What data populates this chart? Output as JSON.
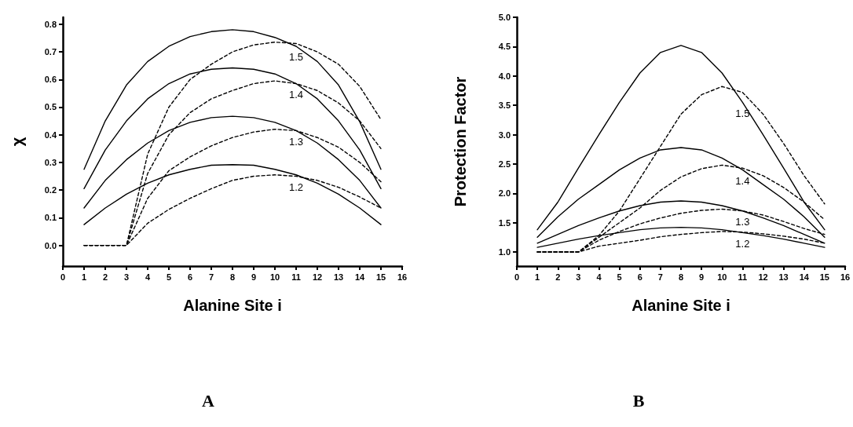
{
  "chart_data": [
    {
      "type": "line",
      "title": "A",
      "xlabel": "Alanine Site i",
      "ylabel": "χ",
      "x": [
        1,
        2,
        3,
        4,
        5,
        6,
        7,
        8,
        9,
        10,
        11,
        12,
        13,
        14,
        15
      ],
      "xlim": [
        0,
        16
      ],
      "xticks": [
        0,
        1,
        2,
        3,
        4,
        5,
        6,
        7,
        8,
        9,
        10,
        11,
        12,
        13,
        14,
        15,
        16
      ],
      "ylim": [
        -0.075,
        0.825
      ],
      "yticks": [
        {
          "value": 0,
          "label": "0.0"
        },
        0.1,
        0.2,
        0.3,
        0.4,
        0.5,
        0.6,
        0.7,
        0.8
      ],
      "marker": "none",
      "series": [
        {
          "color": "#000000",
          "line_style": "solid",
          "values": [
            0.275,
            0.45,
            0.58,
            0.665,
            0.72,
            0.755,
            0.773,
            0.78,
            0.773,
            0.752,
            0.72,
            0.665,
            0.58,
            0.447,
            0.275
          ]
        },
        {
          "color": "#000000",
          "line_style": "solid",
          "values": [
            0.205,
            0.345,
            0.45,
            0.53,
            0.585,
            0.62,
            0.637,
            0.642,
            0.637,
            0.62,
            0.585,
            0.53,
            0.45,
            0.345,
            0.205
          ]
        },
        {
          "color": "#000000",
          "line_style": "solid",
          "values": [
            0.135,
            0.235,
            0.31,
            0.37,
            0.415,
            0.445,
            0.462,
            0.467,
            0.462,
            0.445,
            0.415,
            0.37,
            0.31,
            0.235,
            0.135
          ]
        },
        {
          "color": "#000000",
          "line_style": "solid",
          "values": [
            0.075,
            0.135,
            0.185,
            0.225,
            0.255,
            0.275,
            0.29,
            0.292,
            0.29,
            0.275,
            0.255,
            0.225,
            0.185,
            0.135,
            0.075
          ]
        },
        {
          "color": "#000000",
          "line_style": "dashed",
          "values": [
            0,
            0,
            0,
            0.33,
            0.5,
            0.6,
            0.655,
            0.7,
            0.725,
            0.735,
            0.73,
            0.7,
            0.655,
            0.575,
            0.455
          ]
        },
        {
          "color": "#000000",
          "line_style": "dashed",
          "values": [
            0,
            0,
            0,
            0.26,
            0.4,
            0.48,
            0.53,
            0.56,
            0.585,
            0.595,
            0.585,
            0.56,
            0.515,
            0.45,
            0.35
          ]
        },
        {
          "color": "#000000",
          "line_style": "dashed",
          "values": [
            0,
            0,
            0,
            0.17,
            0.27,
            0.32,
            0.36,
            0.39,
            0.41,
            0.42,
            0.415,
            0.39,
            0.355,
            0.3,
            0.23
          ]
        },
        {
          "color": "#000000",
          "line_style": "dashed",
          "values": [
            0,
            0,
            0,
            0.08,
            0.13,
            0.17,
            0.205,
            0.235,
            0.25,
            0.255,
            0.25,
            0.235,
            0.21,
            0.175,
            0.135
          ]
        }
      ],
      "annotations": [
        "1.5",
        "1.4",
        "1.3",
        "1.2"
      ]
    },
    {
      "type": "line",
      "title": "B",
      "xlabel": "Alanine Site i",
      "ylabel": "Protection Factor",
      "x": [
        1,
        2,
        3,
        4,
        5,
        6,
        7,
        8,
        9,
        10,
        11,
        12,
        13,
        14,
        15
      ],
      "xlim": [
        0,
        16
      ],
      "xticks": [
        0,
        1,
        2,
        3,
        4,
        5,
        6,
        7,
        8,
        9,
        10,
        11,
        12,
        13,
        14,
        15,
        16
      ],
      "ylim": [
        0.76,
        5.0
      ],
      "yticks": [
        {
          "value": 1,
          "label": "1.0"
        },
        1.5,
        {
          "value": 2,
          "label": "2.0"
        },
        2.5,
        {
          "value": 3,
          "label": "3.0"
        },
        3.5,
        {
          "value": 4,
          "label": "4.0"
        },
        4.5,
        {
          "value": 5,
          "label": "5.0"
        }
      ],
      "marker": "none",
      "series": [
        {
          "color": "#000000",
          "line_style": "solid",
          "values": [
            1.38,
            1.85,
            2.43,
            3.0,
            3.55,
            4.05,
            4.4,
            4.52,
            4.4,
            4.05,
            3.55,
            3.0,
            2.43,
            1.85,
            1.38
          ]
        },
        {
          "color": "#000000",
          "line_style": "solid",
          "values": [
            1.25,
            1.6,
            1.9,
            2.15,
            2.4,
            2.6,
            2.74,
            2.78,
            2.74,
            2.6,
            2.4,
            2.15,
            1.9,
            1.6,
            1.25
          ]
        },
        {
          "color": "#000000",
          "line_style": "solid",
          "values": [
            1.15,
            1.3,
            1.45,
            1.58,
            1.7,
            1.79,
            1.85,
            1.87,
            1.85,
            1.79,
            1.7,
            1.58,
            1.45,
            1.3,
            1.15
          ]
        },
        {
          "color": "#000000",
          "line_style": "solid",
          "values": [
            1.08,
            1.15,
            1.22,
            1.28,
            1.33,
            1.38,
            1.41,
            1.42,
            1.41,
            1.38,
            1.33,
            1.28,
            1.22,
            1.15,
            1.08
          ]
        },
        {
          "color": "#000000",
          "line_style": "dashed",
          "values": [
            1,
            1,
            1,
            1.28,
            1.7,
            2.25,
            2.8,
            3.35,
            3.68,
            3.82,
            3.72,
            3.35,
            2.85,
            2.3,
            1.82
          ]
        },
        {
          "color": "#000000",
          "line_style": "dashed",
          "values": [
            1,
            1,
            1,
            1.25,
            1.5,
            1.75,
            2.05,
            2.28,
            2.42,
            2.48,
            2.43,
            2.3,
            2.1,
            1.85,
            1.55
          ]
        },
        {
          "color": "#000000",
          "line_style": "dashed",
          "values": [
            1,
            1,
            1,
            1.2,
            1.35,
            1.48,
            1.58,
            1.66,
            1.71,
            1.73,
            1.7,
            1.63,
            1.52,
            1.4,
            1.3
          ]
        },
        {
          "color": "#000000",
          "line_style": "dashed",
          "values": [
            1,
            1,
            1,
            1.1,
            1.15,
            1.2,
            1.26,
            1.3,
            1.33,
            1.35,
            1.34,
            1.31,
            1.27,
            1.22,
            1.15
          ]
        }
      ],
      "annotations": [
        "1.5",
        "1.4",
        "1.3",
        "1.2"
      ]
    }
  ]
}
